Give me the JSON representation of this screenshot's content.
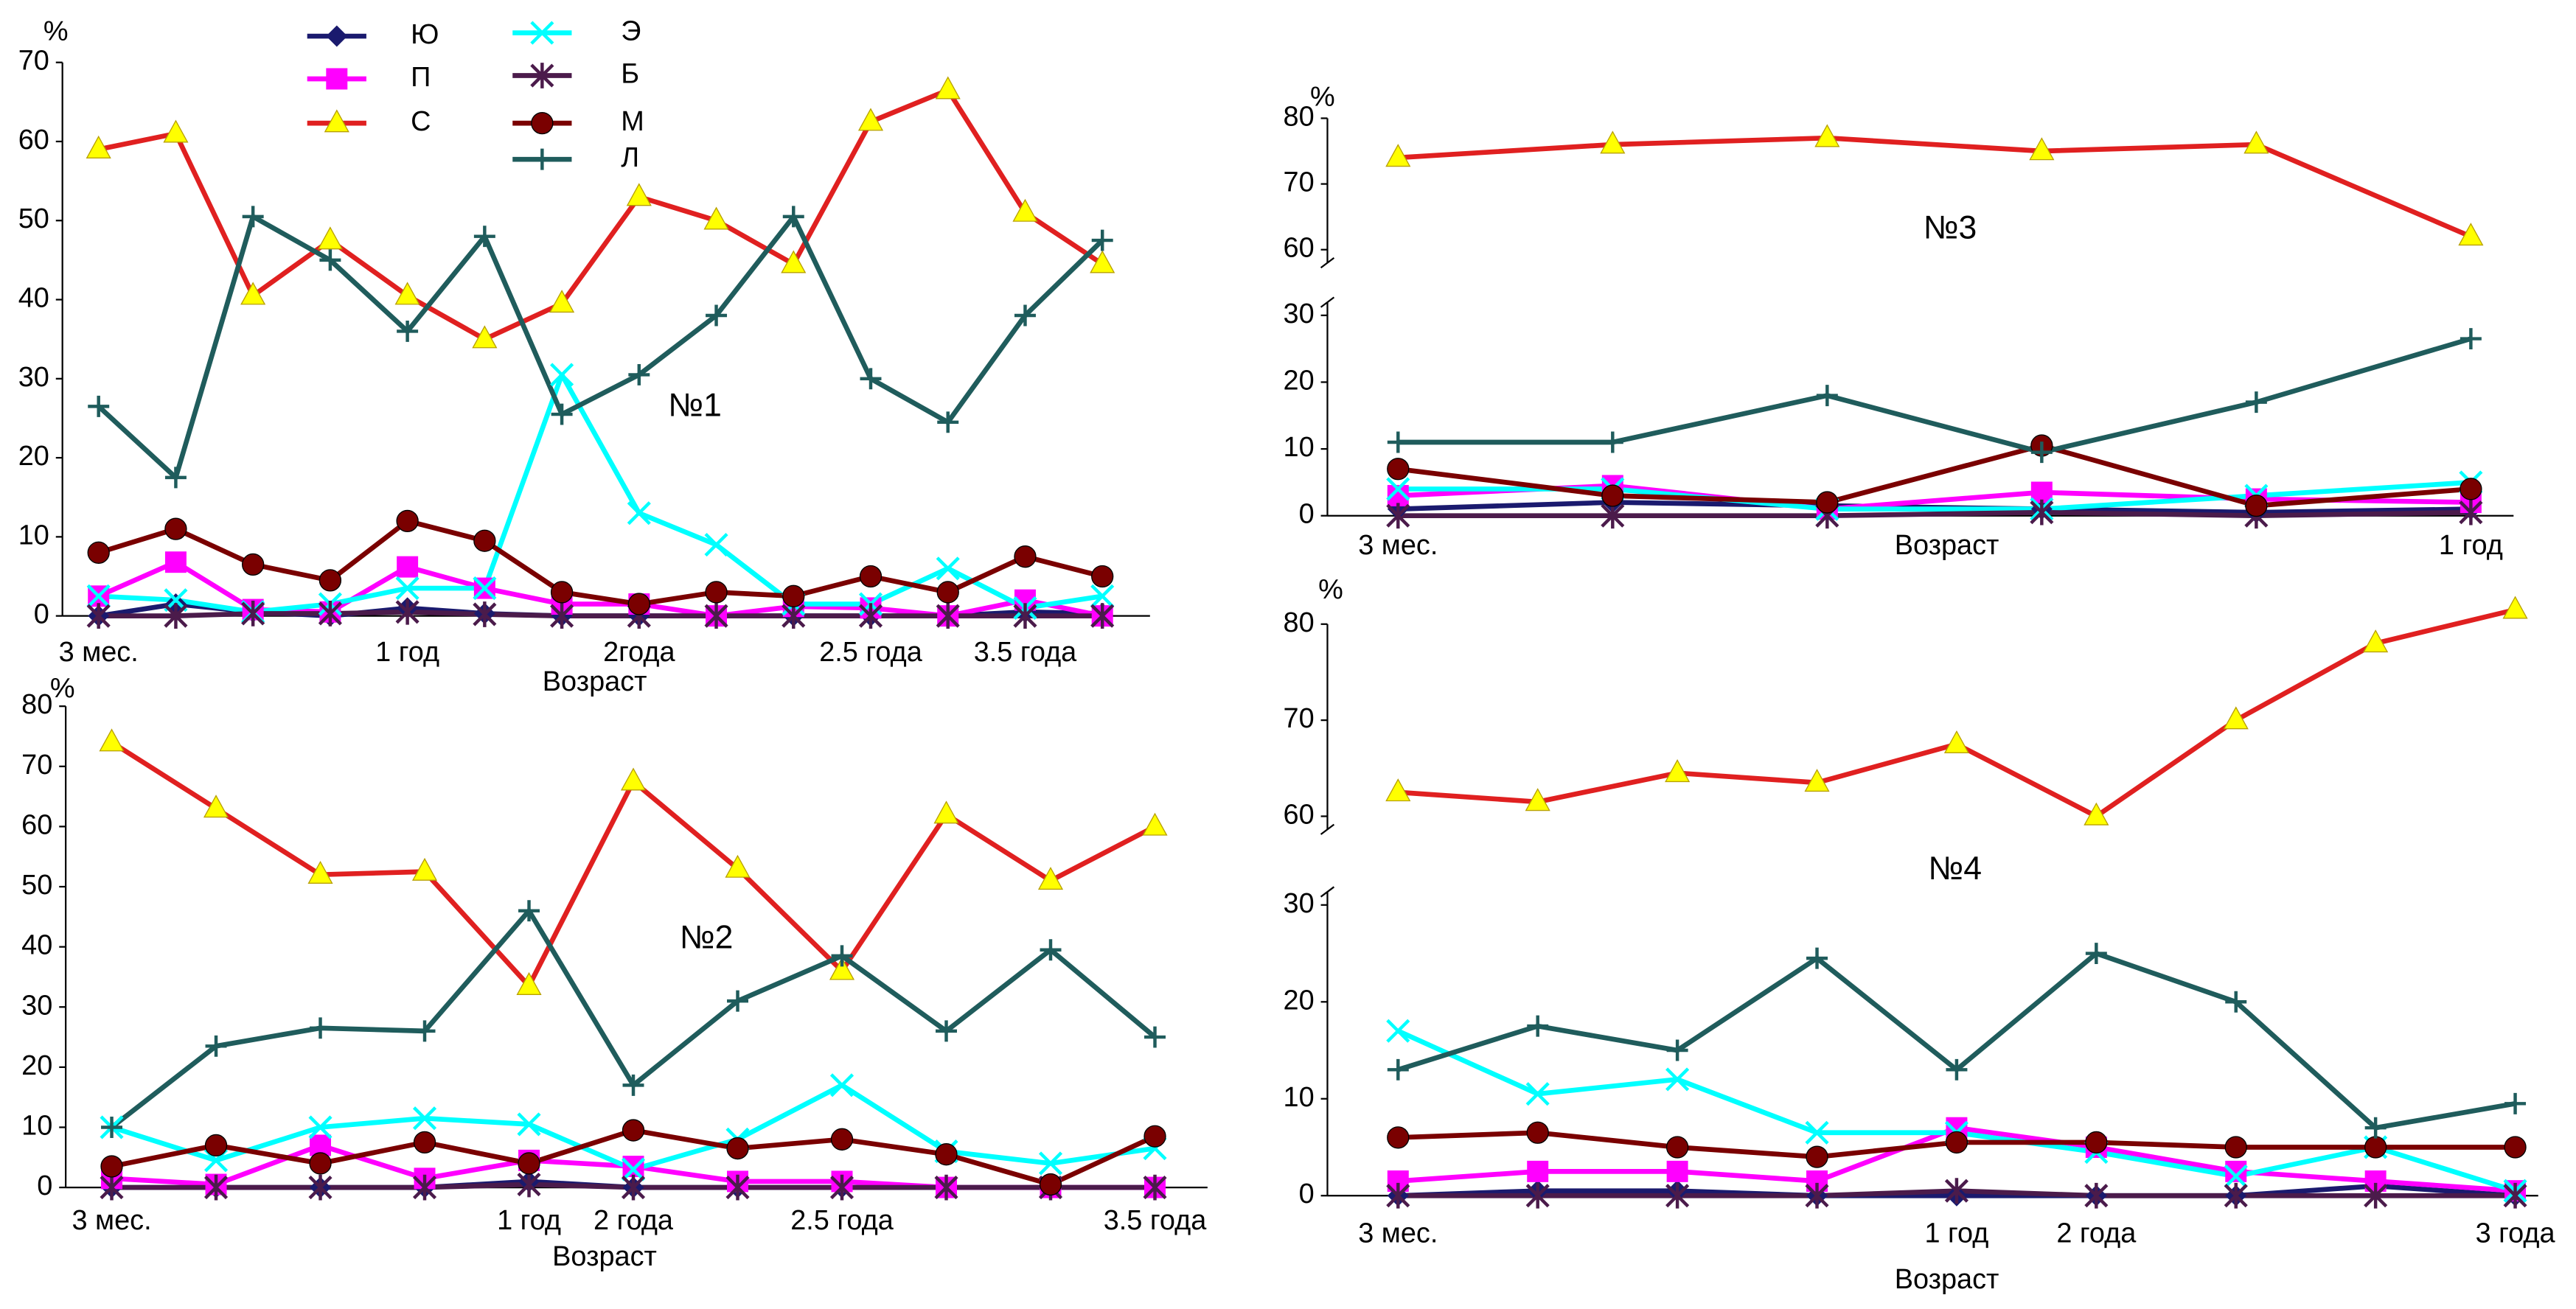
{
  "chart_data": [
    {
      "type": "line",
      "annotation": "№1",
      "xlabel": "Возраст",
      "ylabel": "%",
      "legend": true,
      "categories": [
        "3 мес.",
        null,
        null,
        null,
        "1 год",
        null,
        null,
        "2года",
        null,
        null,
        "2.5 года",
        null,
        "3.5 года",
        null
      ],
      "ylim": [
        0,
        70
      ],
      "yticks": [
        0,
        10,
        20,
        30,
        40,
        50,
        60,
        70
      ],
      "series": [
        {
          "name": "Ю",
          "color": "#1a1a6e",
          "marker": "diamond",
          "values": [
            0,
            1.5,
            0.5,
            0,
            1,
            0.3,
            0,
            0,
            0,
            0,
            0,
            0,
            0.5,
            0.3
          ]
        },
        {
          "name": "П",
          "color": "#ff00ff",
          "marker": "square",
          "values": [
            2.5,
            6.8,
            0.8,
            0.5,
            6.2,
            3.5,
            1.5,
            1.5,
            0,
            1.2,
            1,
            0,
            2,
            0
          ]
        },
        {
          "name": "С",
          "color": "#e02020",
          "marker": "triangle",
          "marker_color": "#ffff00",
          "values": [
            59,
            61,
            40.5,
            47.5,
            40.5,
            35,
            39.5,
            53,
            50,
            44.5,
            62.5,
            66.5,
            51,
            44.5
          ]
        },
        {
          "name": "Э",
          "color": "#00ffff",
          "marker": "x",
          "values": [
            2.5,
            2,
            0.5,
            1.5,
            3.5,
            3.5,
            30.5,
            13,
            9,
            1.5,
            1.5,
            6,
            1,
            2.5
          ]
        },
        {
          "name": "Б",
          "color": "#4b1b4b",
          "marker": "star",
          "values": [
            0,
            0,
            0.3,
            0.3,
            0.5,
            0.2,
            0,
            0,
            0,
            0,
            0,
            0,
            0,
            0
          ]
        },
        {
          "name": "М",
          "color": "#7a0000",
          "marker": "circle",
          "values": [
            8,
            11,
            6.5,
            4.5,
            12,
            9.5,
            3,
            1.5,
            3,
            2.5,
            5,
            3,
            7.5,
            5
          ]
        },
        {
          "name": "Л",
          "color": "#1f5c5c",
          "marker": "plus",
          "values": [
            26.5,
            17.5,
            50.5,
            45,
            36,
            48,
            25.5,
            30.5,
            38,
            50.5,
            30,
            24.5,
            38,
            47.5
          ]
        }
      ]
    },
    {
      "type": "line",
      "annotation": "№2",
      "xlabel": "Возраст",
      "ylabel": "%",
      "categories": [
        "3 мес.",
        null,
        null,
        null,
        "1 год",
        "2 года",
        null,
        "2.5 года",
        null,
        null,
        "3.5 года"
      ],
      "ylim": [
        0,
        80
      ],
      "yticks": [
        0,
        10,
        20,
        30,
        40,
        50,
        60,
        70,
        80
      ],
      "series": [
        {
          "name": "Ю",
          "color": "#1a1a6e",
          "marker": "diamond",
          "values": [
            0,
            0,
            0,
            0,
            1,
            0,
            0,
            0,
            0,
            0,
            0
          ]
        },
        {
          "name": "П",
          "color": "#ff00ff",
          "marker": "square",
          "values": [
            1.5,
            0.5,
            7,
            1.5,
            4.5,
            3.5,
            1,
            1,
            0,
            0,
            0
          ]
        },
        {
          "name": "С",
          "color": "#e02020",
          "marker": "triangle",
          "marker_color": "#ffff00",
          "values": [
            74,
            63,
            52,
            52.5,
            33.5,
            67.5,
            53,
            36,
            62,
            51,
            60
          ]
        },
        {
          "name": "Э",
          "color": "#00ffff",
          "marker": "x",
          "values": [
            10,
            4.5,
            10,
            11.5,
            10.5,
            3,
            8,
            17,
            6,
            4,
            6.5
          ]
        },
        {
          "name": "Б",
          "color": "#4b1b4b",
          "marker": "star",
          "values": [
            0,
            0,
            0,
            0,
            0.5,
            0,
            0,
            0,
            0,
            0,
            0
          ]
        },
        {
          "name": "М",
          "color": "#7a0000",
          "marker": "circle",
          "values": [
            3.5,
            7,
            4,
            7.5,
            4,
            9.5,
            6.5,
            8,
            5.5,
            0.5,
            8.5
          ]
        },
        {
          "name": "Л",
          "color": "#1f5c5c",
          "marker": "plus",
          "values": [
            10,
            23.5,
            26.5,
            26,
            46,
            17,
            31,
            38.5,
            26,
            39.5,
            25
          ]
        }
      ]
    },
    {
      "type": "line",
      "annotation": "№3",
      "xlabel": "Возраст",
      "ylabel": "%",
      "categories": [
        "3 мес.",
        null,
        null,
        null,
        null,
        "1 год"
      ],
      "ylim": [
        0,
        80
      ],
      "axis_break": [
        30,
        60
      ],
      "yticks": [
        0,
        10,
        20,
        30,
        60,
        70,
        80
      ],
      "series": [
        {
          "name": "Ю",
          "color": "#1a1a6e",
          "marker": "diamond",
          "values": [
            1,
            2,
            1.5,
            1,
            0.5,
            1
          ]
        },
        {
          "name": "П",
          "color": "#ff00ff",
          "marker": "square",
          "values": [
            3,
            4.5,
            1,
            3.5,
            2.5,
            2
          ]
        },
        {
          "name": "С",
          "color": "#e02020",
          "marker": "triangle",
          "marker_color": "#ffff00",
          "values": [
            74,
            76,
            77,
            75,
            76,
            62
          ]
        },
        {
          "name": "Э",
          "color": "#00ffff",
          "marker": "x",
          "values": [
            4,
            4,
            1,
            1,
            3,
            5
          ]
        },
        {
          "name": "Б",
          "color": "#4b1b4b",
          "marker": "star",
          "values": [
            0,
            0,
            0,
            0.5,
            0,
            0.5
          ]
        },
        {
          "name": "М",
          "color": "#7a0000",
          "marker": "circle",
          "values": [
            7,
            3,
            2,
            10.5,
            1.5,
            4
          ]
        },
        {
          "name": "Л",
          "color": "#1f5c5c",
          "marker": "plus",
          "values": [
            11,
            11,
            18,
            9.5,
            17,
            26.5
          ]
        }
      ]
    },
    {
      "type": "line",
      "annotation": "№4",
      "xlabel": "Возраст",
      "ylabel": "%",
      "categories": [
        "3 мес.",
        null,
        null,
        null,
        "1 год",
        "2 года",
        null,
        null,
        "3 года"
      ],
      "ylim": [
        0,
        80
      ],
      "axis_break": [
        30,
        60
      ],
      "yticks": [
        0,
        10,
        20,
        30,
        60,
        70,
        80
      ],
      "series": [
        {
          "name": "Ю",
          "color": "#1a1a6e",
          "marker": "diamond",
          "values": [
            0,
            0.5,
            0.5,
            0,
            0,
            0,
            0,
            1,
            0
          ]
        },
        {
          "name": "П",
          "color": "#ff00ff",
          "marker": "square",
          "values": [
            1.5,
            2.5,
            2.5,
            1.5,
            7,
            5,
            2.5,
            1.5,
            0.5
          ]
        },
        {
          "name": "С",
          "color": "#e02020",
          "marker": "triangle",
          "marker_color": "#ffff00",
          "values": [
            62.5,
            61.5,
            64.5,
            63.5,
            67.5,
            60,
            70,
            78,
            81.5
          ]
        },
        {
          "name": "Э",
          "color": "#00ffff",
          "marker": "x",
          "values": [
            17,
            10.5,
            12,
            6.5,
            6.5,
            4.5,
            2,
            5,
            0.5
          ]
        },
        {
          "name": "Б",
          "color": "#4b1b4b",
          "marker": "star",
          "values": [
            0,
            0,
            0,
            0,
            0.5,
            0,
            0,
            0,
            0
          ]
        },
        {
          "name": "М",
          "color": "#7a0000",
          "marker": "circle",
          "values": [
            6,
            6.5,
            5,
            4,
            5.5,
            5.5,
            5,
            5,
            5
          ]
        },
        {
          "name": "Л",
          "color": "#1f5c5c",
          "marker": "plus",
          "values": [
            13,
            17.5,
            15,
            24.5,
            13,
            25,
            20,
            7,
            9.5
          ]
        }
      ]
    }
  ]
}
